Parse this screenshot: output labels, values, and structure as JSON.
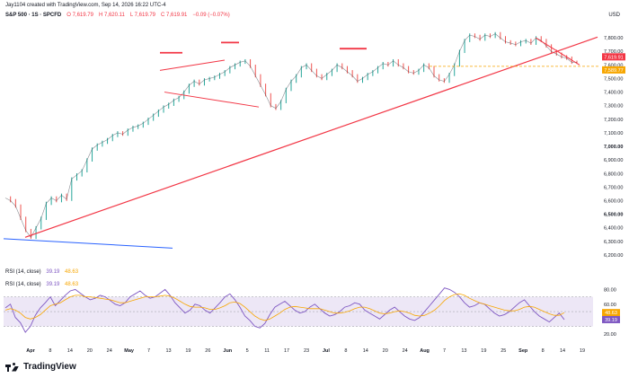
{
  "window": {
    "created_line": "Jay1104 created with TradingView.com, Sep 14, 2026 16:22 UTC-4",
    "symbol": "S&P 500 · 1S · SPCFD",
    "ohlc": {
      "o": "O 7,619.79",
      "h": "H 7,620.11",
      "l": "L 7,619.79",
      "c": "C 7,619.91",
      "chg": "−0.09 (−0.07%)"
    },
    "currency": "USD",
    "logo_text": "TradingView"
  },
  "colors": {
    "up": "#26a69a",
    "down": "#ef5350",
    "trendline": "#f23645",
    "blue_line": "#2962ff",
    "rsi_line": "#7e57c2",
    "rsi_ma": "#f7a600",
    "rsi_band": "#ede7f6",
    "dotted": "#f7a600"
  },
  "chart_data": [
    {
      "type": "line",
      "title": "",
      "xlabel": "",
      "ylabel": "",
      "x_ticks": [
        "Apr",
        "8",
        "14",
        "20",
        "24",
        "May",
        "7",
        "13",
        "19",
        "26",
        "Jun",
        "5",
        "11",
        "17",
        "23",
        "Jul",
        "8",
        "14",
        "20",
        "24",
        "Aug",
        "7",
        "13",
        "19",
        "25",
        "Sep",
        "8",
        "14",
        "19"
      ],
      "y_ticks": [
        7800,
        7700,
        7600,
        7500,
        7400,
        7300,
        7200,
        7100,
        7000,
        6900,
        6800,
        6700,
        6600,
        6500,
        6400,
        6300,
        6200
      ],
      "y_tick_labels": [
        "7,800.00",
        "7,700.00",
        "7,600.00",
        "7,500.00",
        "7,400.00",
        "7,300.00",
        "7,200.00",
        "7,100.00",
        "7,000.00",
        "6,900.00",
        "6,800.00",
        "6,700.00",
        "6,600.00",
        "6,500.00",
        "6,400.00",
        "6,300.00",
        "6,200.00"
      ],
      "ylim": [
        6160,
        7880
      ],
      "price_labels": [
        {
          "label": "7,619.91",
          "value": 7619.91,
          "color": "#f23645"
        },
        {
          "label": "7,589.77",
          "value": 7589.77,
          "color": "#f7a600"
        }
      ],
      "series": [
        {
          "values": [
            6620,
            6600,
            6560,
            6470,
            6380,
            6330,
            6400,
            6470,
            6580,
            6620,
            6600,
            6640,
            6610,
            6760,
            6790,
            6820,
            6900,
            6980,
            7010,
            7030,
            7050,
            7080,
            7100,
            7090,
            7120,
            7140,
            7150,
            7170,
            7200,
            7230,
            7260,
            7290,
            7310,
            7340,
            7360,
            7400,
            7450,
            7480,
            7460,
            7490,
            7500,
            7510,
            7530,
            7550,
            7580,
            7600,
            7620,
            7630,
            7590,
            7520,
            7450,
            7380,
            7300,
            7280,
            7330,
            7420,
            7480,
            7520,
            7580,
            7600,
            7560,
            7520,
            7500,
            7530,
            7560,
            7600,
            7580,
            7550,
            7520,
            7480,
            7500,
            7530,
            7550,
            7580,
            7610,
            7600,
            7630,
            7600,
            7580,
            7550,
            7540,
            7560,
            7600,
            7580,
            7520,
            7490,
            7480,
            7530,
            7600,
            7700,
            7780,
            7820,
            7810,
            7790,
            7820,
            7810,
            7830,
            7800,
            7770,
            7760,
            7750,
            7770,
            7780,
            7760,
            7800,
            7780,
            7740,
            7700,
            7680,
            7660,
            7650,
            7620,
            7619.91
          ]
        }
      ],
      "annotations": {
        "dotted_level": 7589.77
      }
    },
    {
      "type": "line",
      "title": "RSI (14, close)",
      "legend_values": [
        "39.19",
        "48.63"
      ],
      "y_ticks": [
        80,
        60,
        40,
        20
      ],
      "y_tick_labels": [
        "80.00",
        "60.00",
        "40.00",
        "20.00"
      ],
      "ylim": [
        10,
        95
      ],
      "band": [
        30,
        70
      ],
      "rsi_series": [
        {
          "name": "RSI",
          "values": [
            55,
            60,
            42,
            35,
            22,
            30,
            45,
            55,
            62,
            70,
            58,
            65,
            72,
            78,
            80,
            75,
            70,
            66,
            68,
            72,
            70,
            65,
            60,
            58,
            62,
            70,
            74,
            78,
            72,
            68,
            70,
            75,
            80,
            72,
            62,
            55,
            48,
            52,
            60,
            58,
            52,
            48,
            55,
            62,
            70,
            74,
            66,
            56,
            44,
            38,
            30,
            28,
            34,
            46,
            56,
            60,
            64,
            58,
            52,
            48,
            50,
            56,
            60,
            54,
            48,
            44,
            46,
            50,
            56,
            58,
            62,
            60,
            52,
            48,
            44,
            40,
            46,
            52,
            56,
            50,
            44,
            40,
            38,
            42,
            50,
            58,
            66,
            74,
            82,
            80,
            76,
            70,
            62,
            56,
            58,
            62,
            60,
            54,
            48,
            44,
            46,
            50,
            56,
            62,
            66,
            58,
            50,
            44,
            40,
            36,
            42,
            48,
            39.19
          ]
        },
        {
          "name": "MA",
          "values": [
            52,
            54,
            52,
            48,
            42,
            40,
            42,
            46,
            52,
            58,
            60,
            62,
            66,
            70,
            72,
            72,
            70,
            70,
            69,
            68,
            67,
            66,
            64,
            62,
            62,
            64,
            66,
            68,
            70,
            70,
            70,
            71,
            72,
            71,
            68,
            64,
            60,
            57,
            56,
            56,
            55,
            53,
            53,
            55,
            58,
            62,
            63,
            61,
            56,
            50,
            44,
            40,
            38,
            40,
            44,
            48,
            53,
            56,
            57,
            56,
            55,
            54,
            54,
            54,
            52,
            50,
            48,
            48,
            49,
            51,
            54,
            56,
            56,
            54,
            51,
            48,
            47,
            48,
            50,
            51,
            50,
            48,
            45,
            44,
            45,
            48,
            52,
            58,
            65,
            70,
            73,
            74,
            72,
            68,
            65,
            62,
            60,
            58,
            56,
            54,
            52,
            51,
            51,
            53,
            56,
            57,
            56,
            53,
            50,
            47,
            45,
            45,
            48.63
          ]
        }
      ]
    }
  ]
}
